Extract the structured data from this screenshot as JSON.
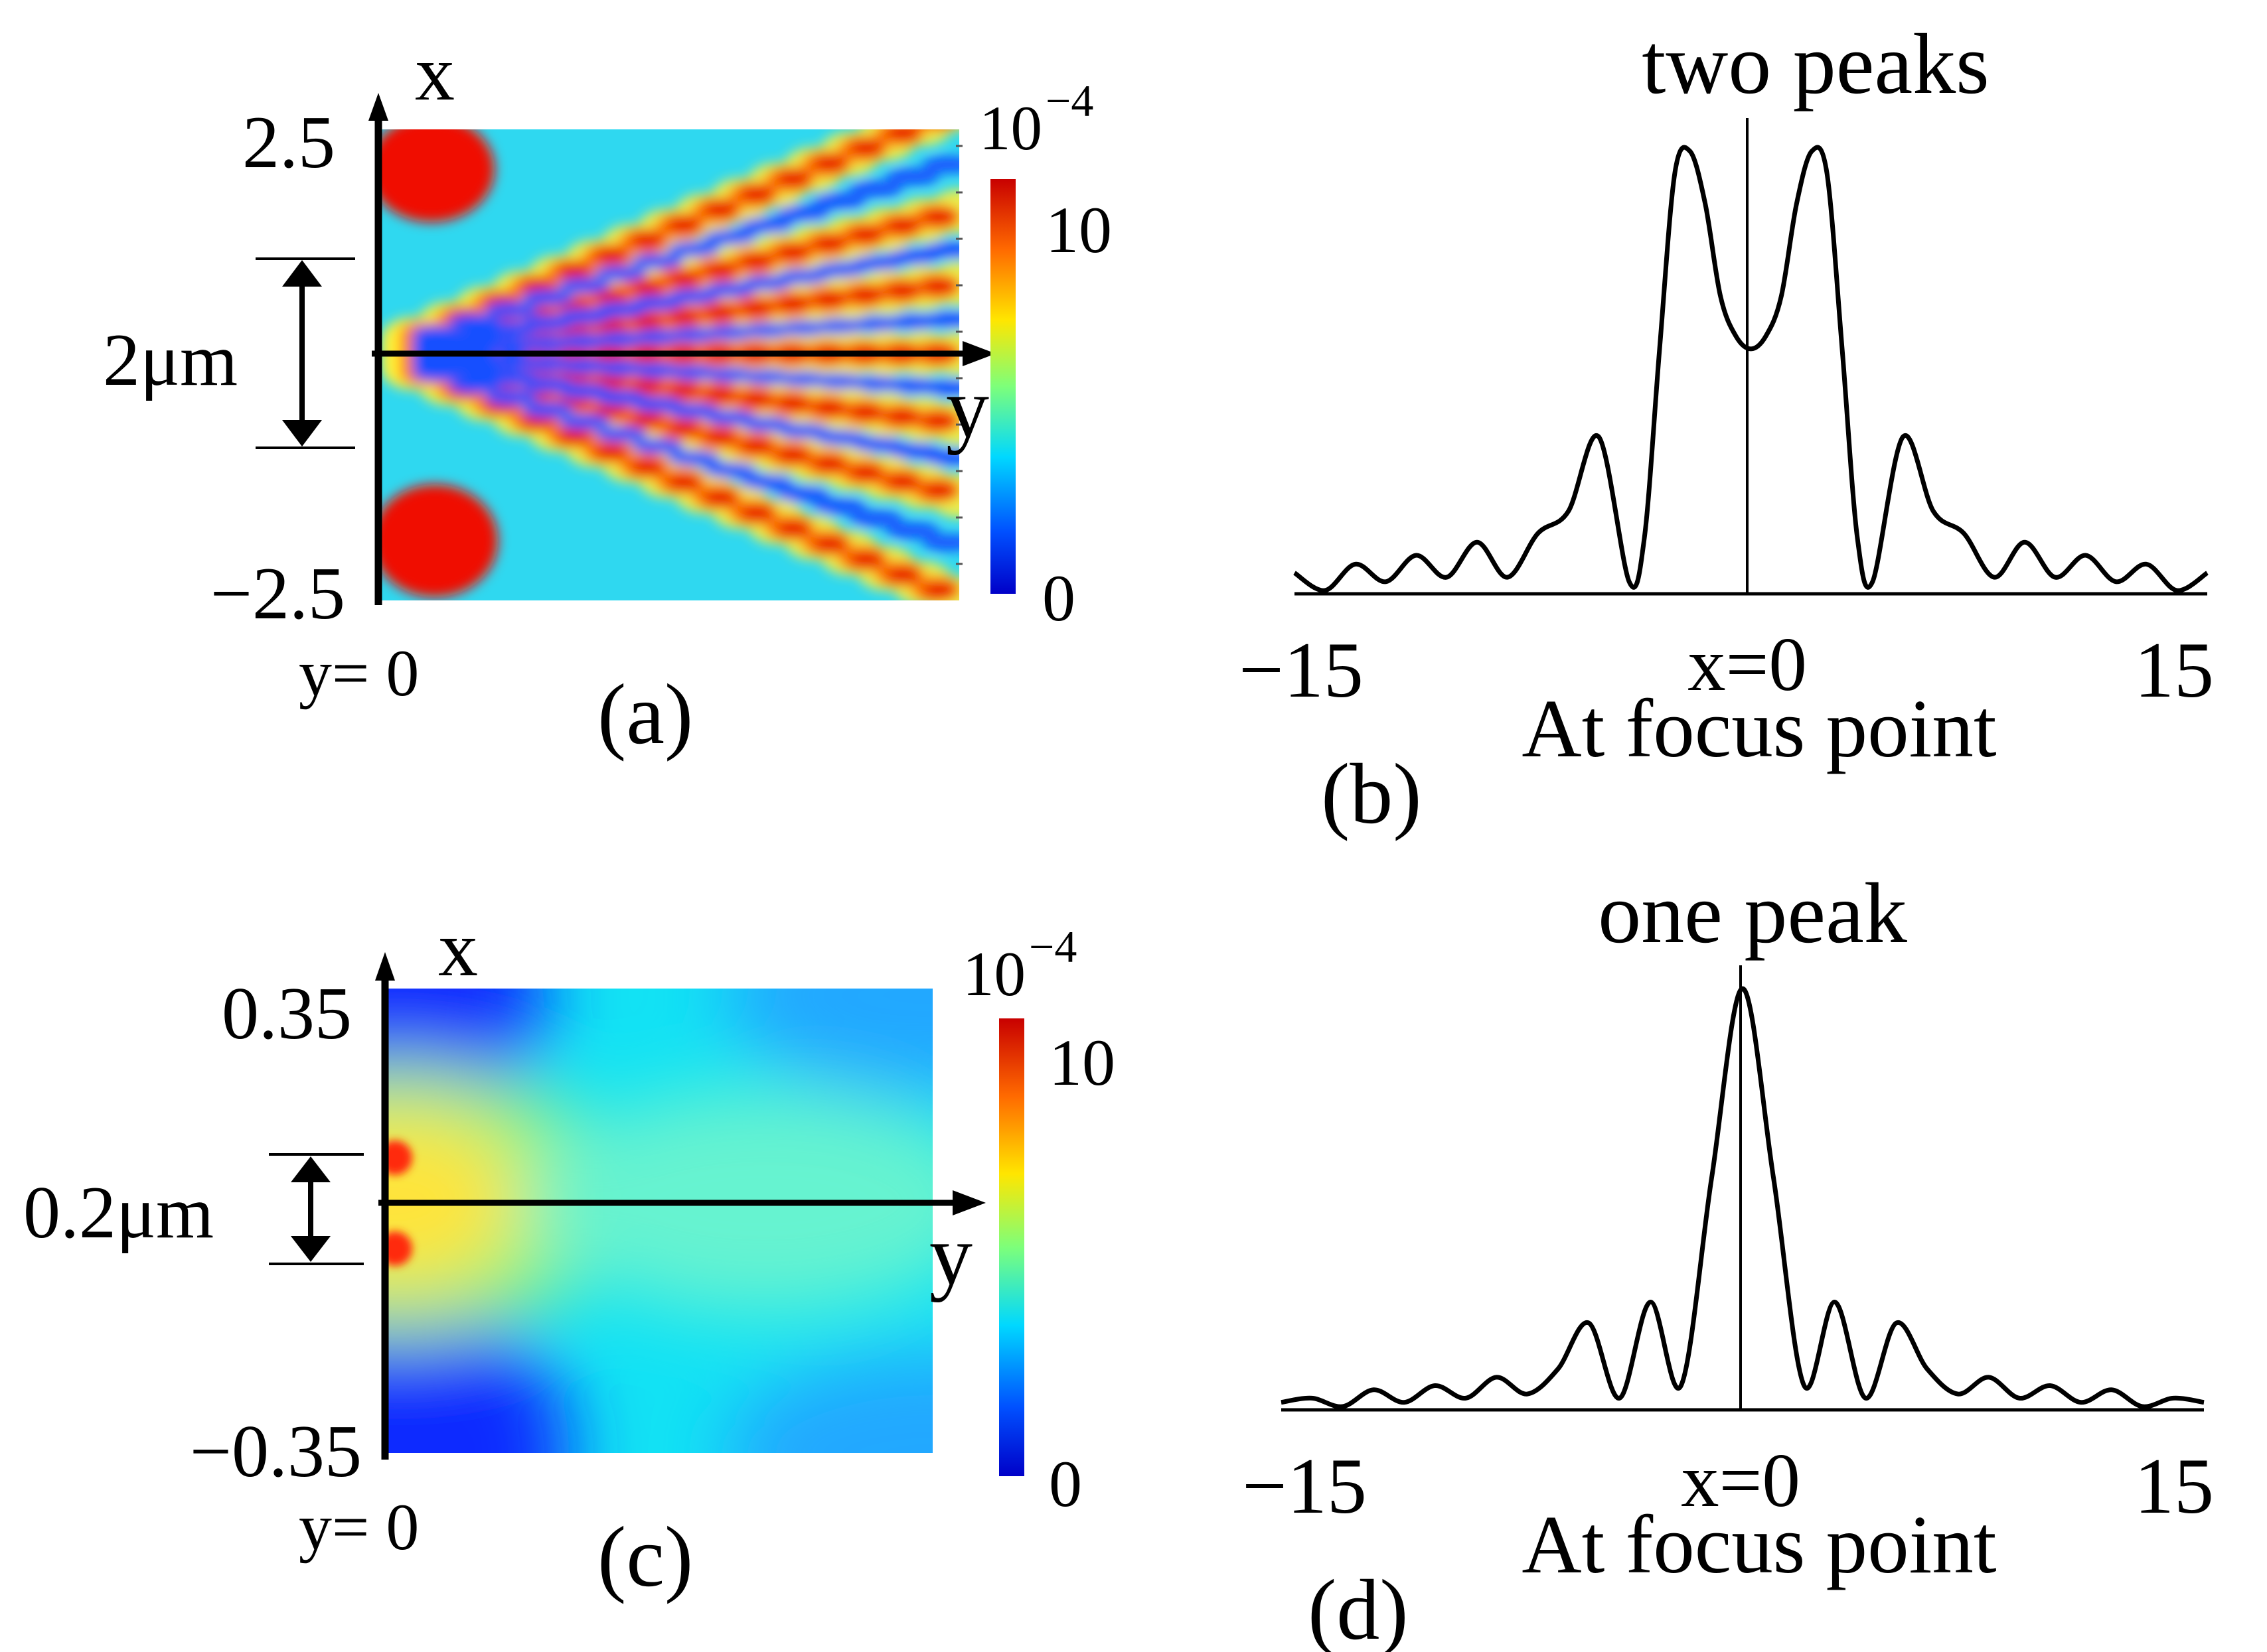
{
  "panels": {
    "a": {
      "label": "(a)",
      "axis_x": "x",
      "axis_y": "y",
      "x_top": "2.5",
      "x_bottom": "−2.5",
      "y_origin": "y= 0",
      "scale_bar": "2μm",
      "colorbar": {
        "exponent_base": "10",
        "exponent": "−4",
        "max_label": "10",
        "min_label": "0"
      }
    },
    "b": {
      "label": "(b)",
      "title": "two peaks",
      "xmin_label": "−15",
      "xmax_label": "15",
      "center_label": "x=0",
      "caption": "At focus point"
    },
    "c": {
      "label": "(c)",
      "axis_x": "x",
      "axis_y": "y",
      "x_top": "0.35",
      "x_bottom": "−0.35",
      "y_origin": "y= 0",
      "scale_bar": "0.2μm",
      "colorbar": {
        "exponent_base": "10",
        "exponent": "−4",
        "max_label": "10",
        "min_label": "0"
      }
    },
    "d": {
      "label": "(d)",
      "title": "one peak",
      "xmin_label": "−15",
      "xmax_label": "15",
      "center_label": "x=0",
      "caption": "At focus point"
    }
  },
  "chart_data": [
    {
      "type": "heatmap",
      "panel": "a",
      "xlabel": "y",
      "ylabel": "x",
      "ylim": [
        -2.5,
        2.5
      ],
      "colorscale": "jet",
      "color_range": [
        0,
        10
      ],
      "color_exponent": "10^-4",
      "pattern": "two-source interference fringes fanning out from y=0"
    },
    {
      "type": "line",
      "panel": "b",
      "title": "two peaks",
      "xlim": [
        -15,
        15
      ],
      "center": 0,
      "x": [
        -15,
        -14,
        -13,
        -12,
        -11,
        -10,
        -9,
        -8,
        -7,
        -6,
        -5,
        -4,
        -3.5,
        -3,
        -2.5,
        -2,
        -1.5,
        -1,
        -0.5,
        0,
        0.5,
        1,
        1.5,
        2,
        2.5,
        3,
        3.5,
        4,
        5,
        6,
        7,
        8,
        9,
        10,
        11,
        12,
        13,
        14,
        15
      ],
      "y": [
        0.04,
        0.0,
        0.06,
        0.02,
        0.08,
        0.03,
        0.11,
        0.03,
        0.13,
        0.18,
        0.35,
        0.02,
        0.12,
        0.55,
        0.95,
        1.0,
        0.88,
        0.67,
        0.58,
        0.55,
        0.58,
        0.67,
        0.88,
        1.0,
        0.95,
        0.55,
        0.12,
        0.02,
        0.35,
        0.18,
        0.13,
        0.03,
        0.11,
        0.03,
        0.08,
        0.02,
        0.06,
        0.0,
        0.04
      ]
    },
    {
      "type": "heatmap",
      "panel": "c",
      "xlabel": "y",
      "ylabel": "x",
      "ylim": [
        -0.35,
        0.35
      ],
      "colorscale": "jet",
      "color_range": [
        0,
        10
      ],
      "color_exponent": "10^-4",
      "pattern": "two point sources near y=0, smooth decay"
    },
    {
      "type": "line",
      "panel": "d",
      "title": "one peak",
      "xlim": [
        -15,
        15
      ],
      "center": 0,
      "x": [
        -15,
        -14,
        -13,
        -12,
        -11,
        -10,
        -9,
        -8,
        -7,
        -6,
        -5,
        -4,
        -3,
        -2,
        -1,
        0,
        1,
        2,
        3,
        4,
        5,
        6,
        7,
        8,
        9,
        10,
        11,
        12,
        13,
        14,
        15
      ],
      "y": [
        0.01,
        0.02,
        0.0,
        0.04,
        0.01,
        0.05,
        0.02,
        0.07,
        0.03,
        0.09,
        0.2,
        0.02,
        0.25,
        0.05,
        0.55,
        1.0,
        0.55,
        0.05,
        0.25,
        0.02,
        0.2,
        0.09,
        0.03,
        0.07,
        0.02,
        0.05,
        0.01,
        0.04,
        0.0,
        0.02,
        0.01
      ]
    }
  ]
}
